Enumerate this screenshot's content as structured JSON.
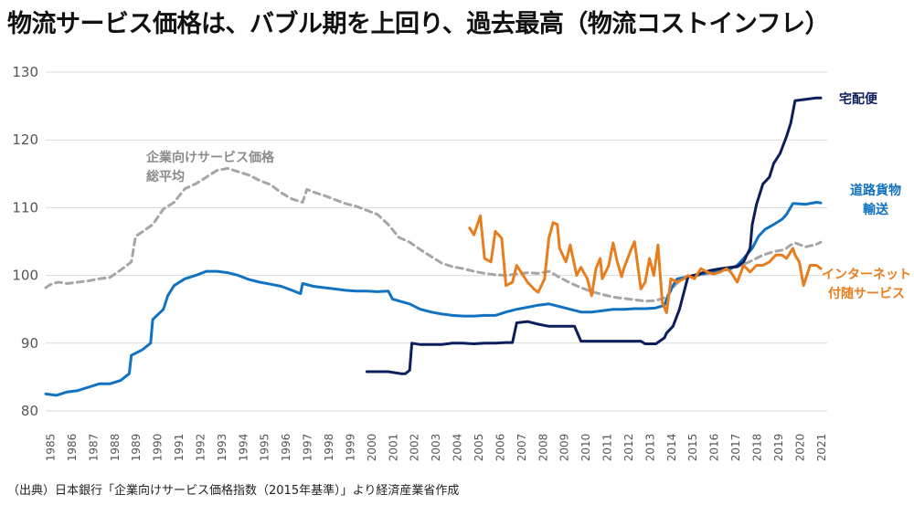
{
  "title": "物流サービス価格は、バブル期を上回り、過去最高（物流コストインフレ）",
  "source": "（出典）日本銀行「企業向けサービス価格指数（2015年基準）」より経済産業省作成",
  "chart_data": {
    "type": "line",
    "title": "物流サービス価格は、バブル期を上回り、過去最高（物流コストインフレ）",
    "xlabel": "",
    "ylabel": "",
    "ylim": [
      80,
      130
    ],
    "xlim": [
      1985,
      2021.5
    ],
    "yticks": [
      80,
      90,
      100,
      110,
      120,
      130
    ],
    "xticks": [
      "1985",
      "1986",
      "1987",
      "1988",
      "1989",
      "1990",
      "1991",
      "1992",
      "1993",
      "1994",
      "1995",
      "1996",
      "1997",
      "1998",
      "1999",
      "2000",
      "2001",
      "2002",
      "2003",
      "2004",
      "2005",
      "2006",
      "2007",
      "2008",
      "2009",
      "2010",
      "2011",
      "2012",
      "2013",
      "2014",
      "2015",
      "2016",
      "2017",
      "2018",
      "2019",
      "2020",
      "2021"
    ],
    "grid": true,
    "legend": "direct labels at right of lines",
    "series": [
      {
        "name": "企業向けサービス価格総平均",
        "label_lines": [
          "企業向けサービス価格",
          "総平均"
        ],
        "color": "#a6a6a6",
        "style": "dashed",
        "x": [
          1985.0,
          1985.3,
          1985.6,
          1986.0,
          1986.5,
          1987.0,
          1987.5,
          1988.0,
          1988.5,
          1989.0,
          1989.2,
          1989.5,
          1990.0,
          1990.5,
          1991.0,
          1991.5,
          1992.0,
          1992.5,
          1993.0,
          1993.5,
          1994.0,
          1994.5,
          1995.0,
          1995.5,
          1996.0,
          1996.5,
          1997.0,
          1997.2,
          1997.5,
          1998.0,
          1998.5,
          1999.0,
          1999.5,
          2000.0,
          2000.5,
          2001.0,
          2001.5,
          2002.0,
          2002.5,
          2003.0,
          2003.5,
          2004.0,
          2004.5,
          2005.0,
          2005.5,
          2006.0,
          2006.5,
          2007.0,
          2007.5,
          2008.0,
          2008.5,
          2009.0,
          2009.5,
          2010.0,
          2010.5,
          2011.0,
          2011.5,
          2012.0,
          2012.5,
          2013.0,
          2013.5,
          2014.0,
          2014.3,
          2014.6,
          2015.0,
          2015.5,
          2016.0,
          2016.5,
          2017.0,
          2017.5,
          2018.0,
          2018.5,
          2019.0,
          2019.5,
          2019.8,
          2020.0,
          2020.5,
          2021.0,
          2021.2
        ],
        "values": [
          98.2,
          98.8,
          99.0,
          98.8,
          99.0,
          99.2,
          99.5,
          99.7,
          100.8,
          102.0,
          105.8,
          106.4,
          107.5,
          109.8,
          110.8,
          112.8,
          113.5,
          114.5,
          115.5,
          115.8,
          115.3,
          114.8,
          114.0,
          113.4,
          112.2,
          111.3,
          110.8,
          112.7,
          112.3,
          111.8,
          111.2,
          110.6,
          110.2,
          109.6,
          109.0,
          107.5,
          105.6,
          104.9,
          103.8,
          102.8,
          101.8,
          101.3,
          101.0,
          100.6,
          100.3,
          100.1,
          100.0,
          100.2,
          100.4,
          100.3,
          100.6,
          99.7,
          98.9,
          98.2,
          97.6,
          97.2,
          96.8,
          96.6,
          96.4,
          96.2,
          96.3,
          96.8,
          98.2,
          99.2,
          99.8,
          100.0,
          100.3,
          100.6,
          101.0,
          101.5,
          102.2,
          103.0,
          103.5,
          103.8,
          104.5,
          104.8,
          104.2,
          104.6,
          104.9
        ]
      },
      {
        "name": "道路貨物輸送",
        "label_lines": [
          "道路貨物",
          "輸送"
        ],
        "color": "#1072c0",
        "style": "solid",
        "x": [
          1985.0,
          1985.5,
          1986.0,
          1986.5,
          1987.0,
          1987.5,
          1988.0,
          1988.5,
          1988.9,
          1989.0,
          1989.5,
          1989.9,
          1990.0,
          1990.5,
          1990.7,
          1991.0,
          1991.5,
          1992.0,
          1992.5,
          1993.0,
          1993.5,
          1994.0,
          1994.5,
          1995.0,
          1995.5,
          1996.0,
          1996.5,
          1996.9,
          1997.0,
          1997.5,
          1998.0,
          1998.5,
          1999.0,
          1999.5,
          2000.0,
          2000.5,
          2001.0,
          2001.2,
          2002.0,
          2002.5,
          2003.0,
          2003.5,
          2004.0,
          2004.5,
          2005.0,
          2005.5,
          2006.0,
          2006.5,
          2007.0,
          2007.5,
          2008.0,
          2008.5,
          2009.0,
          2009.5,
          2010.0,
          2010.5,
          2011.0,
          2011.5,
          2012.0,
          2012.5,
          2013.0,
          2013.5,
          2013.9,
          2014.0,
          2014.3,
          2014.5,
          2015.0,
          2015.5,
          2016.0,
          2016.5,
          2017.0,
          2017.3,
          2017.6,
          2018.0,
          2018.3,
          2018.6,
          2019.0,
          2019.4,
          2019.6,
          2019.9,
          2020.0,
          2020.5,
          2021.0,
          2021.2
        ],
        "values": [
          82.5,
          82.3,
          82.8,
          83.0,
          83.5,
          84.0,
          84.0,
          84.5,
          85.5,
          88.2,
          89.0,
          90.0,
          93.5,
          95.0,
          97.0,
          98.5,
          99.5,
          100.0,
          100.6,
          100.6,
          100.4,
          100.0,
          99.4,
          99.0,
          98.7,
          98.4,
          97.8,
          97.3,
          98.8,
          98.4,
          98.2,
          98.0,
          97.8,
          97.7,
          97.7,
          97.6,
          97.7,
          96.5,
          95.8,
          95.0,
          94.6,
          94.3,
          94.1,
          94.0,
          94.0,
          94.1,
          94.1,
          94.6,
          95.0,
          95.3,
          95.6,
          95.8,
          95.4,
          95.0,
          94.6,
          94.6,
          94.8,
          95.0,
          95.0,
          95.1,
          95.1,
          95.2,
          95.6,
          96.5,
          98.5,
          99.5,
          99.8,
          100.1,
          100.5,
          100.8,
          101.0,
          101.5,
          102.5,
          104.0,
          105.8,
          106.8,
          107.5,
          108.3,
          109.0,
          110.6,
          110.6,
          110.5,
          110.8,
          110.7
        ]
      },
      {
        "name": "宅配便",
        "label_lines": [
          "宅配便"
        ],
        "color": "#0d1e5c",
        "style": "solid",
        "x": [
          2000.0,
          2001.0,
          2001.6,
          2001.8,
          2002.0,
          2002.1,
          2002.5,
          2003.0,
          2003.5,
          2004.0,
          2004.5,
          2005.0,
          2005.5,
          2006.0,
          2006.5,
          2006.8,
          2007.0,
          2007.5,
          2008.0,
          2008.5,
          2009.0,
          2009.7,
          2010.0,
          2010.5,
          2011.0,
          2011.5,
          2012.0,
          2012.5,
          2012.8,
          2013.0,
          2013.5,
          2013.9,
          2014.0,
          2014.3,
          2014.6,
          2015.0,
          2015.5,
          2016.0,
          2016.5,
          2017.0,
          2017.3,
          2017.6,
          2017.9,
          2018.0,
          2018.2,
          2018.5,
          2018.8,
          2019.0,
          2019.3,
          2019.6,
          2019.8,
          2020.0,
          2020.5,
          2021.0,
          2021.2
        ],
        "values": [
          85.8,
          85.8,
          85.5,
          85.5,
          86.0,
          90.0,
          89.8,
          89.8,
          89.8,
          90.0,
          90.0,
          89.9,
          90.0,
          90.0,
          90.1,
          90.1,
          93.0,
          93.2,
          92.8,
          92.5,
          92.5,
          92.5,
          90.3,
          90.3,
          90.3,
          90.3,
          90.3,
          90.3,
          90.3,
          89.9,
          89.9,
          90.8,
          91.5,
          92.5,
          95.0,
          99.8,
          100.2,
          100.7,
          101.0,
          101.2,
          101.3,
          102.0,
          104.0,
          107.5,
          110.5,
          113.5,
          114.5,
          116.5,
          118.0,
          120.5,
          122.5,
          125.8,
          126.0,
          126.2,
          126.2
        ]
      },
      {
        "name": "インターネット付随サービス",
        "label_lines": [
          "インターネット",
          "付随サービス"
        ],
        "color": "#e87d1e",
        "style": "solid",
        "x": [
          2004.8,
          2005.0,
          2005.3,
          2005.5,
          2005.8,
          2006.0,
          2006.3,
          2006.5,
          2006.8,
          2007.0,
          2007.2,
          2007.5,
          2007.8,
          2008.0,
          2008.3,
          2008.5,
          2008.7,
          2008.9,
          2009.0,
          2009.3,
          2009.5,
          2009.8,
          2010.0,
          2010.3,
          2010.5,
          2010.7,
          2010.9,
          2011.0,
          2011.3,
          2011.5,
          2011.7,
          2011.9,
          2012.0,
          2012.3,
          2012.5,
          2012.8,
          2013.0,
          2013.2,
          2013.4,
          2013.6,
          2013.8,
          2014.0,
          2014.2,
          2014.5,
          2014.8,
          2015.0,
          2015.3,
          2015.6,
          2015.9,
          2016.2,
          2016.5,
          2016.8,
          2017.0,
          2017.3,
          2017.6,
          2017.9,
          2018.2,
          2018.5,
          2018.8,
          2019.1,
          2019.4,
          2019.6,
          2019.9,
          2020.0,
          2020.2,
          2020.4,
          2020.7,
          2021.0,
          2021.2
        ],
        "values": [
          107.0,
          106.0,
          108.8,
          102.5,
          102.0,
          106.5,
          105.5,
          98.5,
          99.0,
          101.5,
          100.5,
          99.0,
          98.0,
          97.5,
          99.5,
          105.5,
          107.8,
          107.5,
          104.0,
          102.0,
          104.5,
          100.0,
          101.2,
          99.5,
          97.0,
          101.0,
          102.5,
          99.5,
          101.5,
          104.8,
          102.0,
          99.8,
          101.0,
          103.5,
          105.0,
          98.0,
          99.0,
          102.5,
          100.0,
          104.5,
          96.0,
          94.5,
          99.5,
          99.0,
          99.5,
          100.0,
          99.5,
          101.0,
          100.5,
          100.2,
          100.5,
          101.0,
          100.5,
          99.0,
          101.5,
          100.5,
          101.5,
          101.5,
          102.0,
          103.0,
          103.0,
          102.5,
          104.0,
          103.0,
          102.0,
          98.5,
          101.5,
          101.5,
          101.0
        ]
      }
    ]
  }
}
